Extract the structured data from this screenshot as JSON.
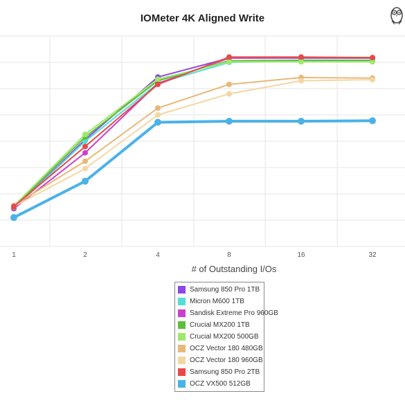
{
  "chart_data": {
    "type": "line",
    "title": "IOMeter 4K Aligned Write",
    "xlabel": "# of Outstanding I/Os",
    "ylabel": "",
    "x": [
      "1",
      "2",
      "4",
      "8",
      "16",
      "32"
    ],
    "grid": true,
    "legend_position": "bottom",
    "series": [
      {
        "name": "Samsung 850 Pro 1TB",
        "color": "#8e44e8",
        "values": [
          72,
          203,
          322,
          358,
          358,
          358
        ]
      },
      {
        "name": "Micron M600 1TB",
        "color": "#55ddd8",
        "values": [
          72,
          200,
          310,
          350,
          352,
          352
        ]
      },
      {
        "name": "Sandisk Extreme Pro 960GB",
        "color": "#cc3fcc",
        "values": [
          72,
          178,
          310,
          358,
          359,
          358
        ]
      },
      {
        "name": "Crucial MX200 1TB",
        "color": "#5cbf3a",
        "values": [
          75,
          208,
          315,
          353,
          354,
          354
        ]
      },
      {
        "name": "Crucial MX200 500GB",
        "color": "#9ee86a",
        "values": [
          77,
          213,
          318,
          351,
          351,
          351
        ]
      },
      {
        "name": "OCZ Vector 180 480GB",
        "color": "#e8b878",
        "values": [
          78,
          162,
          263,
          308,
          321,
          320
        ]
      },
      {
        "name": "OCZ Vector 180 960GB",
        "color": "#f5d6a0",
        "values": [
          76,
          148,
          250,
          290,
          315,
          317
        ]
      },
      {
        "name": "Samsung 850 Pro 2TB",
        "color": "#e84848",
        "values": [
          76,
          190,
          308,
          360,
          360,
          359
        ]
      },
      {
        "name": "OCZ VX500 512GB",
        "color": "#4ab2e8",
        "values": [
          55,
          124,
          236,
          238,
          238,
          239
        ]
      }
    ]
  }
}
